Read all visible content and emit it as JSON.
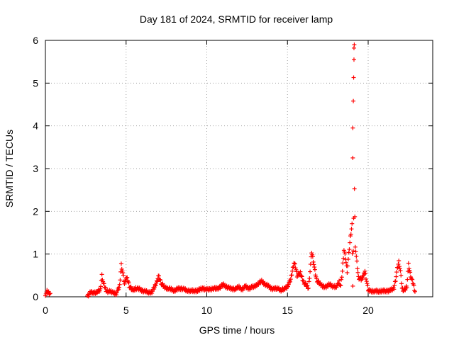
{
  "chart_data": {
    "type": "scatter",
    "title": "Day 181 of 2024, SRMTID for receiver lamp",
    "xlabel": "GPS time / hours",
    "ylabel": "SRMTID / TECUs",
    "xlim": [
      0,
      24
    ],
    "ylim": [
      0,
      6
    ],
    "x_ticks": [
      "0",
      "5",
      "10",
      "15",
      "20"
    ],
    "y_ticks": [
      "0",
      "1",
      "2",
      "3",
      "4",
      "5",
      "6"
    ],
    "grid": true,
    "marker": "+",
    "color": "#ff0000",
    "series": [
      {
        "name": "SRMTID",
        "segments": [
          [
            0.0,
            0.06
          ],
          [
            0.1,
            0.12
          ],
          [
            0.2,
            0.1
          ],
          [
            0.3,
            0.08
          ],
          [
            2.6,
            0.02
          ],
          [
            2.8,
            0.1
          ],
          [
            3.0,
            0.09
          ],
          [
            3.2,
            0.12
          ],
          [
            3.4,
            0.15
          ],
          [
            3.5,
            0.5
          ],
          [
            3.6,
            0.3
          ],
          [
            3.8,
            0.13
          ],
          [
            4.0,
            0.12
          ],
          [
            4.2,
            0.1
          ],
          [
            4.4,
            0.08
          ],
          [
            4.6,
            0.25
          ],
          [
            4.7,
            0.75
          ],
          [
            4.8,
            0.55
          ],
          [
            4.9,
            0.3
          ],
          [
            5.0,
            0.45
          ],
          [
            5.1,
            0.4
          ],
          [
            5.2,
            0.25
          ],
          [
            5.4,
            0.15
          ],
          [
            5.6,
            0.2
          ],
          [
            5.8,
            0.18
          ],
          [
            6.0,
            0.15
          ],
          [
            6.2,
            0.12
          ],
          [
            6.4,
            0.1
          ],
          [
            6.6,
            0.12
          ],
          [
            6.8,
            0.25
          ],
          [
            6.9,
            0.35
          ],
          [
            7.0,
            0.48
          ],
          [
            7.1,
            0.4
          ],
          [
            7.2,
            0.3
          ],
          [
            7.4,
            0.22
          ],
          [
            7.6,
            0.2
          ],
          [
            7.8,
            0.17
          ],
          [
            8.0,
            0.15
          ],
          [
            8.2,
            0.18
          ],
          [
            8.4,
            0.2
          ],
          [
            8.6,
            0.17
          ],
          [
            8.8,
            0.14
          ],
          [
            9.0,
            0.15
          ],
          [
            9.2,
            0.13
          ],
          [
            9.4,
            0.15
          ],
          [
            9.6,
            0.17
          ],
          [
            9.8,
            0.2
          ],
          [
            10.0,
            0.16
          ],
          [
            10.2,
            0.18
          ],
          [
            10.4,
            0.2
          ],
          [
            10.6,
            0.19
          ],
          [
            10.8,
            0.22
          ],
          [
            11.0,
            0.28
          ],
          [
            11.2,
            0.24
          ],
          [
            11.4,
            0.2
          ],
          [
            11.6,
            0.18
          ],
          [
            11.8,
            0.2
          ],
          [
            12.0,
            0.22
          ],
          [
            12.2,
            0.18
          ],
          [
            12.4,
            0.24
          ],
          [
            12.6,
            0.2
          ],
          [
            12.8,
            0.22
          ],
          [
            13.0,
            0.25
          ],
          [
            13.2,
            0.32
          ],
          [
            13.4,
            0.36
          ],
          [
            13.6,
            0.3
          ],
          [
            13.8,
            0.25
          ],
          [
            14.0,
            0.2
          ],
          [
            14.2,
            0.18
          ],
          [
            14.4,
            0.2
          ],
          [
            14.6,
            0.16
          ],
          [
            14.8,
            0.18
          ],
          [
            15.0,
            0.25
          ],
          [
            15.2,
            0.4
          ],
          [
            15.3,
            0.6
          ],
          [
            15.4,
            0.8
          ],
          [
            15.5,
            0.7
          ],
          [
            15.6,
            0.5
          ],
          [
            15.8,
            0.55
          ],
          [
            16.0,
            0.35
          ],
          [
            16.2,
            0.25
          ],
          [
            16.3,
            0.2
          ],
          [
            16.4,
            0.6
          ],
          [
            16.5,
            1.05
          ],
          [
            16.6,
            0.85
          ],
          [
            16.7,
            0.6
          ],
          [
            16.8,
            0.4
          ],
          [
            17.0,
            0.3
          ],
          [
            17.2,
            0.25
          ],
          [
            17.4,
            0.22
          ],
          [
            17.6,
            0.3
          ],
          [
            17.8,
            0.25
          ],
          [
            18.0,
            0.22
          ],
          [
            18.2,
            0.35
          ],
          [
            18.3,
            0.25
          ],
          [
            18.4,
            0.6
          ],
          [
            18.5,
            1.1
          ],
          [
            18.6,
            0.9
          ],
          [
            18.7,
            0.6
          ],
          [
            18.8,
            1.0
          ],
          [
            18.9,
            1.4
          ],
          [
            19.0,
            1.7
          ],
          [
            19.05,
            0.25
          ],
          [
            19.1,
            1.85
          ],
          [
            19.15,
            2.55
          ],
          [
            19.2,
            1.2
          ],
          [
            19.3,
            0.8
          ],
          [
            19.4,
            0.45
          ],
          [
            19.6,
            0.4
          ],
          [
            19.8,
            0.6
          ],
          [
            20.0,
            0.15
          ],
          [
            20.2,
            0.13
          ],
          [
            20.4,
            0.14
          ],
          [
            20.6,
            0.12
          ],
          [
            20.8,
            0.14
          ],
          [
            21.0,
            0.13
          ],
          [
            21.2,
            0.14
          ],
          [
            21.4,
            0.15
          ],
          [
            21.6,
            0.2
          ],
          [
            21.7,
            0.4
          ],
          [
            21.8,
            0.65
          ],
          [
            21.9,
            0.82
          ],
          [
            22.0,
            0.6
          ],
          [
            22.1,
            0.2
          ],
          [
            22.2,
            0.15
          ],
          [
            22.3,
            0.18
          ],
          [
            22.4,
            0.25
          ],
          [
            22.5,
            0.75
          ],
          [
            22.6,
            0.55
          ],
          [
            22.7,
            0.4
          ],
          [
            22.8,
            0.3
          ],
          [
            22.9,
            0.12
          ]
        ],
        "spike": [
          [
            19.05,
            3.25
          ],
          [
            19.05,
            3.95
          ],
          [
            19.08,
            4.58
          ],
          [
            19.1,
            5.13
          ],
          [
            19.12,
            5.55
          ],
          [
            19.12,
            5.82
          ],
          [
            19.14,
            5.9
          ]
        ]
      }
    ]
  }
}
